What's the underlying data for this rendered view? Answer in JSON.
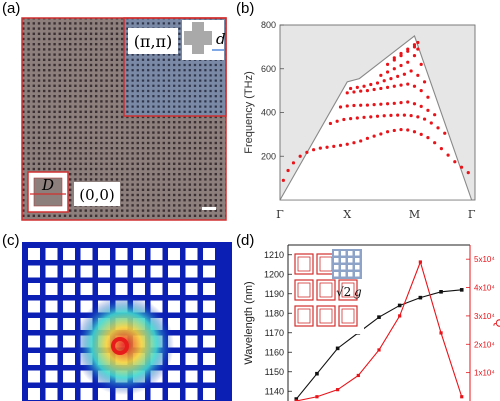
{
  "panels": {
    "a": {
      "label": "(a)",
      "corner_label_pi": "(π,π)",
      "corner_label_zero": "(0,0)",
      "unit_cell_D": "D",
      "unit_cell_d": "d",
      "colors": {
        "background_crystal": "#8c7f7c",
        "pi_region": "#7a8aa6",
        "hole": "#3c3034",
        "border": "#d23030"
      }
    },
    "b": {
      "label": "(b)",
      "colors": {
        "band_dot": "#e8141a",
        "light_cone": "#e6e6e6",
        "edge_line": "#888888"
      }
    },
    "c": {
      "label": "(c)",
      "colors": {
        "bg": "#0b1fb5",
        "hole": "#ffffff",
        "field_hot": "#e81b1b",
        "field_mid": "#f0e63c",
        "field_cool": "#3fd8d0"
      }
    },
    "d": {
      "label": "(d)",
      "inset_formula_sqrt": "√2",
      "inset_formula_g": "g",
      "colors": {
        "wavelength": "#111111",
        "q": "#e8141a",
        "inset_border": "#d23030"
      }
    }
  },
  "chart_data": [
    {
      "type": "scatter",
      "panel": "b",
      "title": "",
      "xlabel": "",
      "ylabel": "Frequency (THz)",
      "x_ticks": [
        "Γ",
        "X",
        "M",
        "Γ"
      ],
      "y_ticks": [
        200,
        400,
        600,
        800
      ],
      "ylim": [
        0,
        800
      ],
      "light_line": {
        "x": [
          0,
          1,
          1.18,
          2,
          2.85
        ],
        "y": [
          0,
          540,
          555,
          750,
          0
        ]
      },
      "series": [
        {
          "x": [
            0.05,
            0.12,
            0.2,
            0.3,
            0.4,
            0.5,
            0.6,
            0.7,
            0.8,
            0.9,
            1.0,
            1.1,
            1.2,
            1.3,
            1.4,
            1.5,
            1.6,
            1.7,
            1.8,
            1.9,
            2.0,
            2.1,
            2.2,
            2.3,
            2.4,
            2.5,
            2.6,
            2.7,
            2.8
          ],
          "y": [
            90,
            135,
            170,
            200,
            218,
            230,
            237,
            241,
            245,
            250,
            255,
            262,
            270,
            282,
            292,
            302,
            312,
            318,
            322,
            320,
            312,
            300,
            285,
            262,
            235,
            205,
            175,
            150,
            125
          ]
        },
        {
          "x": [
            0.75,
            0.85,
            0.95,
            1.05,
            1.15,
            1.25,
            1.35,
            1.45,
            1.55,
            1.65,
            1.75,
            1.85,
            1.95,
            2.05,
            2.15,
            2.25,
            2.35,
            2.45
          ],
          "y": [
            350,
            360,
            368,
            372,
            375,
            378,
            380,
            383,
            385,
            387,
            388,
            388,
            386,
            380,
            370,
            352,
            330,
            305
          ]
        },
        {
          "x": [
            0.9,
            1.0,
            1.1,
            1.2,
            1.3,
            1.4,
            1.5,
            1.6,
            1.7,
            1.8,
            1.9,
            2.0,
            2.1,
            2.2,
            2.3
          ],
          "y": [
            425,
            430,
            432,
            433,
            434,
            436,
            438,
            440,
            442,
            445,
            448,
            440,
            428,
            410,
            390
          ]
        },
        {
          "x": [
            1.0,
            1.1,
            1.2,
            1.3,
            1.4,
            1.5,
            1.6,
            1.7,
            1.8,
            1.9,
            2.0,
            2.1,
            2.2
          ],
          "y": [
            490,
            494,
            498,
            500,
            505,
            510,
            515,
            520,
            525,
            530,
            520,
            500,
            470
          ]
        },
        {
          "x": [
            1.05,
            1.15,
            1.25,
            1.35,
            1.45,
            1.55,
            1.65,
            1.75,
            1.85,
            1.95,
            2.05,
            2.15
          ],
          "y": [
            510,
            515,
            520,
            528,
            535,
            545,
            555,
            565,
            575,
            590,
            570,
            540
          ]
        },
        {
          "x": [
            1.5,
            1.6,
            1.7,
            1.8,
            1.9,
            2.0,
            2.1
          ],
          "y": [
            570,
            585,
            600,
            615,
            630,
            660,
            620
          ]
        },
        {
          "x": [
            1.6,
            1.7,
            1.8,
            1.9,
            2.0,
            2.05
          ],
          "y": [
            620,
            640,
            660,
            680,
            700,
            690
          ]
        },
        {
          "x": [
            1.7,
            1.8,
            1.9,
            2.0,
            2.05
          ],
          "y": [
            650,
            670,
            690,
            710,
            720
          ]
        }
      ]
    },
    {
      "type": "line",
      "panel": "d",
      "title": "",
      "xlabel": "",
      "ylabel": "Wavelength (nm)",
      "ylabel_right": "Q",
      "ylim": [
        1135,
        1215
      ],
      "y_ticks": [
        1140,
        1150,
        1160,
        1170,
        1180,
        1190,
        1200,
        1210
      ],
      "y2lim": [
        0,
        55000
      ],
      "y2_ticks": [
        "1x10⁴",
        "2x10⁴",
        "3x10⁴",
        "4x10⁴",
        "5x10⁴"
      ],
      "y2_tick_values": [
        10000,
        20000,
        30000,
        40000,
        50000
      ],
      "x": [
        1,
        2,
        3,
        4,
        5,
        6,
        7,
        8,
        9
      ],
      "series": [
        {
          "axis": "left",
          "values": [
            1136,
            1149,
            1162,
            1170,
            1178,
            1184,
            1188,
            1191,
            1192
          ]
        },
        {
          "axis": "right",
          "values": [
            0,
            1500,
            4000,
            9000,
            18000,
            30000,
            49000,
            24000,
            1500
          ]
        }
      ]
    }
  ]
}
